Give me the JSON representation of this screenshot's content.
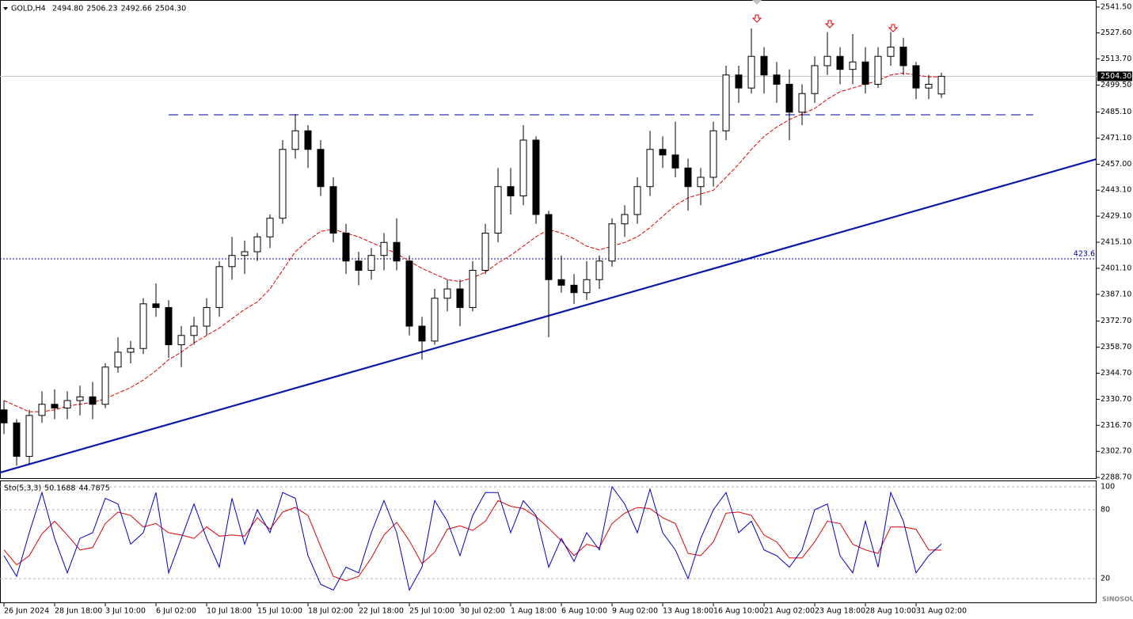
{
  "chart_data": [
    {
      "type": "candlestick",
      "title": "GOLD,H4",
      "ohlc_header": [
        "2494.80",
        "2506.23",
        "2492.66",
        "2504.30"
      ],
      "categories": [
        "26 Jun 2024",
        null,
        null,
        null,
        "28 Jun 18:00",
        null,
        null,
        null,
        "3 Jul 10:00",
        null,
        null,
        null,
        "6 Jul 02:00",
        null,
        null,
        null,
        "10 Jul 18:00",
        null,
        null,
        null,
        "15 Jul 10:00",
        null,
        null,
        null,
        "18 Jul 02:00",
        null,
        null,
        null,
        "22 Jul 18:00",
        null,
        null,
        null,
        "25 Jul 10:00",
        null,
        null,
        null,
        "30 Jul 02:00",
        null,
        null,
        null,
        "1 Aug 18:00",
        null,
        null,
        null,
        "6 Aug 10:00",
        null,
        null,
        null,
        "9 Aug 02:00",
        null,
        null,
        null,
        "13 Aug 18:00",
        null,
        null,
        null,
        "16 Aug 10:00",
        null,
        null,
        null,
        "21 Aug 02:00",
        null,
        null,
        null,
        "23 Aug 18:00",
        null,
        null,
        null,
        "28 Aug 10:00",
        null,
        null,
        null,
        "31 Aug 02:00",
        null,
        null
      ],
      "open": [
        2325,
        2318,
        2300,
        2322,
        2328,
        2326,
        2330,
        2332,
        2328,
        2348,
        2356,
        2358,
        2382,
        2380,
        2360,
        2365,
        2370,
        2380,
        2402,
        2408,
        2410,
        2418,
        2428,
        2465,
        2475,
        2465,
        2445,
        2420,
        2405,
        2400,
        2408,
        2415,
        2405,
        2370,
        2362,
        2385,
        2390,
        2380,
        2400,
        2420,
        2445,
        2440,
        2470,
        2430,
        2395,
        2392,
        2388,
        2395,
        2405,
        2425,
        2430,
        2445,
        2465,
        2462,
        2455,
        2445,
        2450,
        2475,
        2505,
        2498,
        2515,
        2505,
        2500,
        2485,
        2495,
        2510,
        2515,
        2508,
        2512,
        2500,
        2515,
        2520,
        2510,
        2498,
        2494.8
      ],
      "high": [
        2330,
        2320,
        2325,
        2335,
        2336,
        2335,
        2338,
        2340,
        2350,
        2364,
        2362,
        2385,
        2393,
        2384,
        2370,
        2375,
        2385,
        2405,
        2418,
        2416,
        2420,
        2430,
        2470,
        2484,
        2478,
        2470,
        2450,
        2425,
        2410,
        2412,
        2420,
        2428,
        2408,
        2375,
        2390,
        2395,
        2395,
        2405,
        2425,
        2455,
        2455,
        2478,
        2472,
        2432,
        2408,
        2398,
        2405,
        2408,
        2428,
        2435,
        2450,
        2475,
        2472,
        2480,
        2460,
        2455,
        2480,
        2510,
        2510,
        2530,
        2520,
        2512,
        2508,
        2500,
        2515,
        2528,
        2520,
        2527,
        2520,
        2520,
        2528,
        2525,
        2512,
        2505,
        2506.23
      ],
      "low": [
        2312,
        2295,
        2296,
        2318,
        2320,
        2320,
        2322,
        2320,
        2326,
        2345,
        2350,
        2355,
        2375,
        2353,
        2348,
        2360,
        2365,
        2375,
        2395,
        2398,
        2405,
        2412,
        2425,
        2460,
        2455,
        2440,
        2415,
        2398,
        2392,
        2395,
        2400,
        2400,
        2365,
        2352,
        2360,
        2378,
        2370,
        2378,
        2398,
        2415,
        2430,
        2435,
        2425,
        2364,
        2388,
        2382,
        2384,
        2390,
        2402,
        2418,
        2425,
        2440,
        2455,
        2450,
        2432,
        2435,
        2445,
        2470,
        2490,
        2495,
        2495,
        2490,
        2470,
        2478,
        2490,
        2505,
        2500,
        2500,
        2495,
        2498,
        2510,
        2505,
        2492,
        2492,
        2492.66
      ],
      "close": [
        2318,
        2300,
        2322,
        2328,
        2326,
        2330,
        2332,
        2328,
        2348,
        2356,
        2358,
        2382,
        2380,
        2360,
        2365,
        2370,
        2380,
        2402,
        2408,
        2410,
        2418,
        2428,
        2465,
        2475,
        2465,
        2445,
        2420,
        2405,
        2400,
        2408,
        2415,
        2405,
        2370,
        2362,
        2385,
        2390,
        2380,
        2400,
        2420,
        2445,
        2440,
        2470,
        2430,
        2395,
        2392,
        2388,
        2395,
        2405,
        2425,
        2430,
        2445,
        2465,
        2462,
        2455,
        2445,
        2450,
        2475,
        2505,
        2498,
        2515,
        2505,
        2500,
        2485,
        2495,
        2510,
        2515,
        2508,
        2512,
        2500,
        2515,
        2520,
        2510,
        2498,
        2500,
        2504.3
      ],
      "ma": {
        "color": "#e00000",
        "values": [
          2330,
          2327,
          2324,
          2324,
          2325,
          2327,
          2328,
          2329,
          2331,
          2334,
          2337,
          2341,
          2346,
          2352,
          2356,
          2361,
          2365,
          2369,
          2374,
          2379,
          2383,
          2390,
          2400,
          2410,
          2416,
          2421,
          2422,
          2420,
          2418,
          2415,
          2412,
          2409,
          2405,
          2401,
          2398,
          2395,
          2394,
          2396,
          2399,
          2404,
          2408,
          2413,
          2418,
          2422,
          2420,
          2417,
          2413,
          2411,
          2413,
          2415,
          2418,
          2423,
          2429,
          2435,
          2439,
          2441,
          2443,
          2450,
          2457,
          2465,
          2472,
          2477,
          2481,
          2484,
          2487,
          2492,
          2496,
          2498,
          2500,
          2502,
          2505,
          2506,
          2505,
          2504,
          2504
        ]
      },
      "ylim": [
        2287.9,
        2545.3
      ],
      "yticks": [
        {
          "value": 2541.5,
          "label": "2541.50"
        },
        {
          "value": 2527.6,
          "label": "2527.60"
        },
        {
          "value": 2513.7,
          "label": "2513.70"
        },
        {
          "value": 2499.5,
          "label": "2499.50"
        },
        {
          "value": 2485.1,
          "label": "2485.10"
        },
        {
          "value": 2471.1,
          "label": "2471.10"
        },
        {
          "value": 2457,
          "label": "2457.00"
        },
        {
          "value": 2443.1,
          "label": "2443.10"
        },
        {
          "value": 2429.1,
          "label": "2429.10"
        },
        {
          "value": 2415.1,
          "label": "2415.10"
        },
        {
          "value": 2401.1,
          "label": "2401.10"
        },
        {
          "value": 2387.1,
          "label": "2387.10"
        },
        {
          "value": 2372.7,
          "label": "2372.70"
        },
        {
          "value": 2358.7,
          "label": "2358.70"
        },
        {
          "value": 2344.7,
          "label": "2344.70"
        },
        {
          "value": 2330.7,
          "label": "2330.70"
        },
        {
          "value": 2316.7,
          "label": "2316.70"
        },
        {
          "value": 2302.7,
          "label": "2302.70"
        },
        {
          "value": 2288.7,
          "label": "2288.70"
        }
      ],
      "current_price": {
        "value": 2504.3,
        "label": "2504.30"
      },
      "fib_level": {
        "value": 2406.2,
        "label": "423.6"
      },
      "resistance_level": 2483.6,
      "trendline": [
        2291.3,
        2459.8
      ],
      "watermark": "SINOSOUND"
    },
    {
      "type": "line",
      "title": "Sto(5,3,3)",
      "series": [
        {
          "name": "Main",
          "color": "#0000c8",
          "values": [
            40,
            22,
            60,
            95,
            55,
            25,
            55,
            60,
            90,
            85,
            50,
            60,
            95,
            25,
            55,
            85,
            55,
            30,
            90,
            50,
            80,
            60,
            95,
            90,
            40,
            15,
            10,
            30,
            25,
            60,
            88,
            60,
            10,
            30,
            88,
            70,
            40,
            75,
            95,
            95,
            60,
            88,
            75,
            30,
            55,
            35,
            60,
            45,
            100,
            85,
            60,
            98,
            60,
            45,
            20,
            55,
            80,
            95,
            60,
            70,
            45,
            40,
            30,
            45,
            80,
            85,
            40,
            25,
            70,
            30,
            95,
            70,
            25,
            40,
            50.1688
          ]
        },
        {
          "name": "Signal",
          "color": "#e00000",
          "values": [
            45,
            32,
            40,
            59,
            70,
            58,
            45,
            47,
            68,
            78,
            75,
            65,
            68,
            60,
            58,
            55,
            65,
            57,
            58,
            57,
            73,
            63,
            78,
            82,
            75,
            48,
            22,
            18,
            22,
            38,
            58,
            69,
            53,
            33,
            43,
            63,
            66,
            62,
            70,
            88,
            83,
            81,
            74,
            64,
            53,
            40,
            50,
            47,
            68,
            77,
            82,
            81,
            73,
            68,
            42,
            40,
            52,
            77,
            78,
            75,
            58,
            52,
            38,
            38,
            52,
            70,
            68,
            50,
            45,
            42,
            65,
            65,
            63,
            45,
            44.7875
          ]
        }
      ],
      "ylim": [
        -1.4,
        105.5
      ],
      "yticks": [
        100,
        80,
        20
      ]
    }
  ]
}
